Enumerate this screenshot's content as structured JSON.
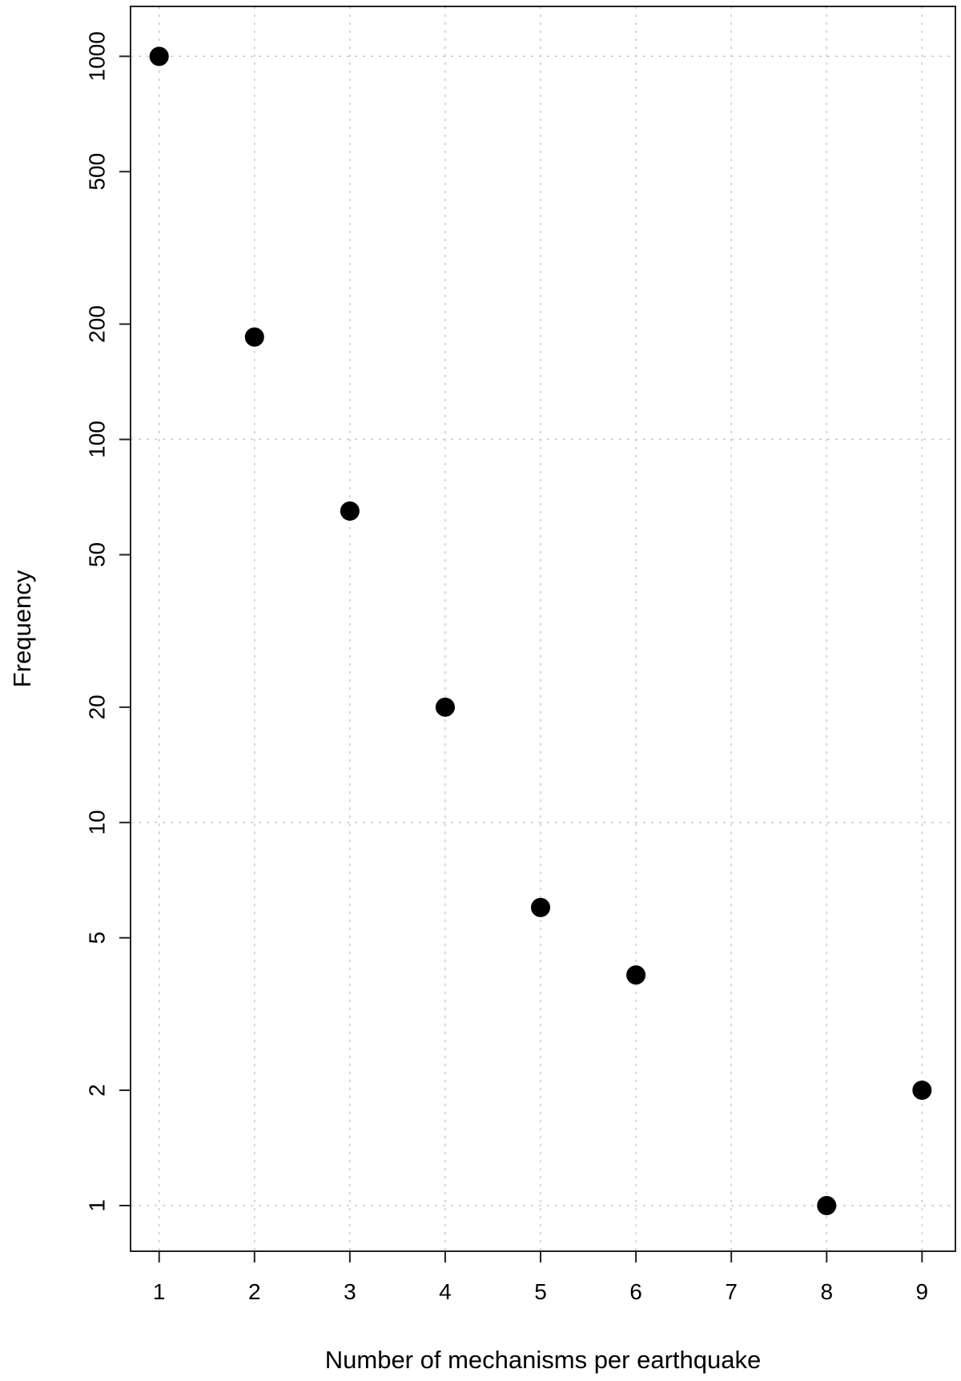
{
  "chart_data": {
    "type": "scatter",
    "title": "",
    "xlabel": "Number of mechanisms per earthquake",
    "ylabel": "Frequency",
    "x_ticks": [
      1,
      2,
      3,
      4,
      5,
      6,
      7,
      8,
      9
    ],
    "y_ticks": [
      1,
      2,
      5,
      10,
      20,
      50,
      100,
      200,
      500,
      1000
    ],
    "y_scale": "log",
    "xlim": [
      0.7,
      9.35
    ],
    "ylim": [
      0.76,
      1350
    ],
    "grid": true,
    "points": [
      {
        "x": 1,
        "y": 1000
      },
      {
        "x": 2,
        "y": 185
      },
      {
        "x": 3,
        "y": 65
      },
      {
        "x": 4,
        "y": 20
      },
      {
        "x": 5,
        "y": 6
      },
      {
        "x": 6,
        "y": 4
      },
      {
        "x": 8,
        "y": 1
      },
      {
        "x": 9,
        "y": 2
      }
    ],
    "colors": {
      "points": "#000000",
      "grid": "#c8c8c8",
      "axis": "#222222"
    }
  }
}
